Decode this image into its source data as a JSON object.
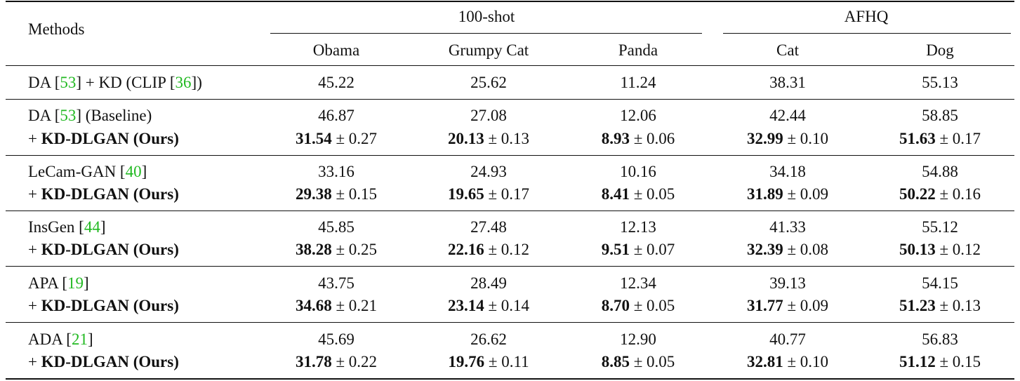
{
  "header": {
    "methods": "Methods",
    "group_100shot": "100-shot",
    "group_afhq": "AFHQ",
    "columns": [
      "Obama",
      "Grumpy Cat",
      "Panda",
      "Cat",
      "Dog"
    ]
  },
  "kd_row": {
    "method_pre": "DA [",
    "ref1": "53",
    "method_mid": "] + KD (CLIP [",
    "ref2": "36",
    "method_post": "])",
    "values": [
      "45.22",
      "25.62",
      "11.24",
      "38.31",
      "55.13"
    ]
  },
  "groups": [
    {
      "base_pre": "DA [",
      "ref": "53",
      "base_post": "] (Baseline)",
      "base_values": [
        "46.87",
        "27.08",
        "12.06",
        "42.44",
        "58.85"
      ],
      "ours_label_pre": "+ ",
      "ours_label": "KD-DLGAN (Ours)",
      "ours_means": [
        "31.54",
        "20.13",
        "8.93",
        "32.99",
        "51.63"
      ],
      "ours_stds": [
        "± 0.27",
        "± 0.13",
        "± 0.06",
        "± 0.10",
        "± 0.17"
      ]
    },
    {
      "base_pre": "LeCam-GAN [",
      "ref": "40",
      "base_post": "]",
      "base_values": [
        "33.16",
        "24.93",
        "10.16",
        "34.18",
        "54.88"
      ],
      "ours_label_pre": "+ ",
      "ours_label": "KD-DLGAN (Ours)",
      "ours_means": [
        "29.38",
        "19.65",
        "8.41",
        "31.89",
        "50.22"
      ],
      "ours_stds": [
        "± 0.15",
        "± 0.17",
        "± 0.05",
        "± 0.09",
        "± 0.16"
      ]
    },
    {
      "base_pre": "InsGen [",
      "ref": "44",
      "base_post": "]",
      "base_values": [
        "45.85",
        "27.48",
        "12.13",
        "41.33",
        "55.12"
      ],
      "ours_label_pre": "+ ",
      "ours_label": "KD-DLGAN (Ours)",
      "ours_means": [
        "38.28",
        "22.16",
        "9.51",
        "32.39",
        "50.13"
      ],
      "ours_stds": [
        "± 0.25",
        "± 0.12",
        "± 0.07",
        "± 0.08",
        "± 0.12"
      ]
    },
    {
      "base_pre": "APA [",
      "ref": "19",
      "base_post": "]",
      "base_values": [
        "43.75",
        "28.49",
        "12.34",
        "39.13",
        "54.15"
      ],
      "ours_label_pre": "+ ",
      "ours_label": "KD-DLGAN (Ours)",
      "ours_means": [
        "34.68",
        "23.14",
        "8.70",
        "31.77",
        "51.23"
      ],
      "ours_stds": [
        "± 0.21",
        "± 0.14",
        "± 0.05",
        "± 0.09",
        "± 0.13"
      ]
    },
    {
      "base_pre": "ADA [",
      "ref": "21",
      "base_post": "]",
      "base_values": [
        "45.69",
        "26.62",
        "12.90",
        "40.77",
        "56.83"
      ],
      "ours_label_pre": "+ ",
      "ours_label": "KD-DLGAN (Ours)",
      "ours_means": [
        "31.78",
        "19.76",
        "8.85",
        "32.81",
        "51.12"
      ],
      "ours_stds": [
        "± 0.22",
        "± 0.11",
        "± 0.05",
        "± 0.10",
        "± 0.15"
      ]
    }
  ],
  "colors": {
    "reference_link": "#22b922",
    "text": "#111111"
  }
}
